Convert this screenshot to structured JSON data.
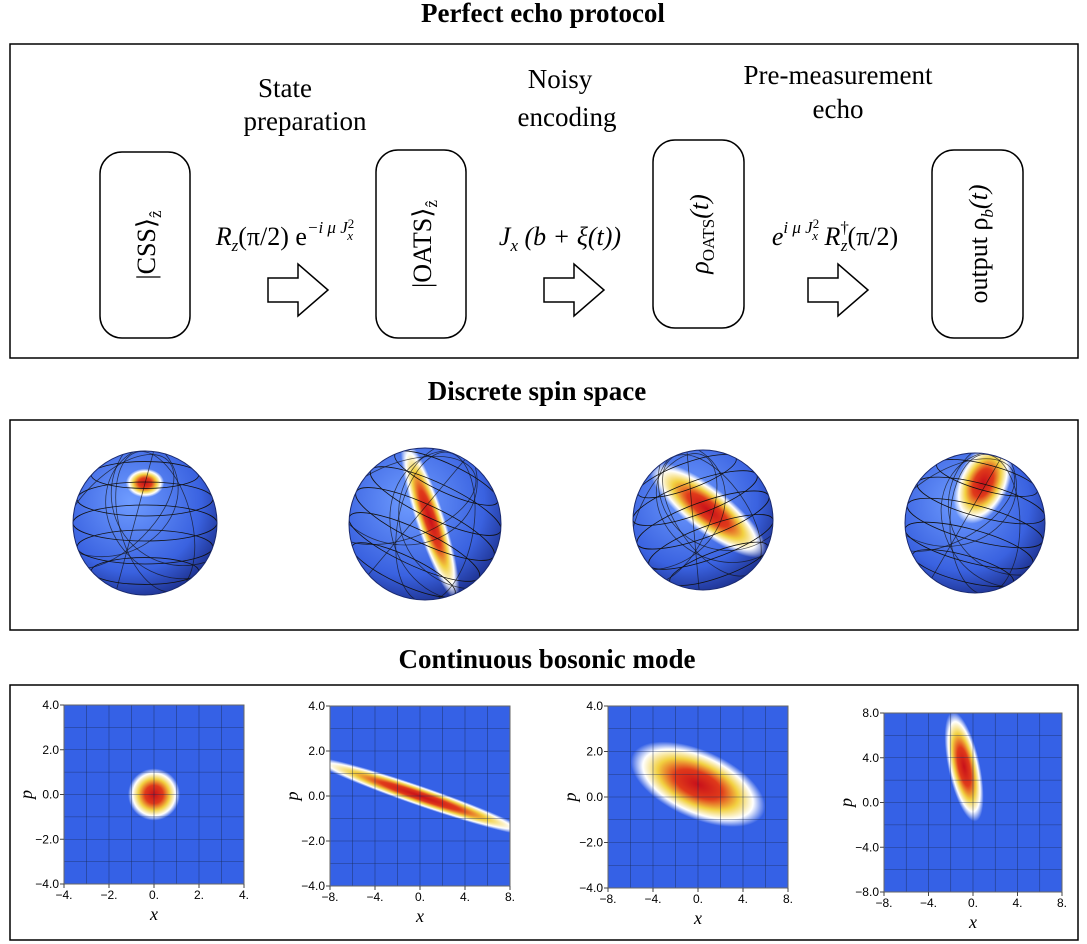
{
  "protocol": {
    "title": "Perfect echo protocol",
    "steps": [
      [
        "State",
        "preparation"
      ],
      [
        "Noisy",
        "encoding"
      ],
      [
        "Pre-measurement",
        "echo"
      ]
    ],
    "states": [
      [
        "|CSS⟩",
        "ẑ"
      ],
      [
        "|OATS⟩",
        "ẑ"
      ],
      [
        "ρ",
        "OATS",
        "(t)"
      ],
      [
        "output ρ",
        "b",
        "(t)"
      ]
    ],
    "operators": [
      [
        "R",
        "z",
        "(π/2) e",
        "−i μ J",
        "2",
        "x"
      ],
      [
        "J",
        "x",
        " (b + ξ(t))"
      ],
      [
        "e",
        "i μ J",
        "2",
        "x",
        " R",
        "†",
        "z",
        "(π/2)"
      ]
    ]
  },
  "spin": {
    "title": "Discrete spin space"
  },
  "bosonic": {
    "title": "Continuous bosonic mode",
    "x_label": "x",
    "p_label": "p",
    "plots": [
      {
        "xticks": [
          "−4.",
          "−2.",
          "0.",
          "2.",
          "4."
        ],
        "yticks": [
          "4.0",
          "2.0",
          "0.0",
          "−2.0",
          "−4.0"
        ]
      },
      {
        "xticks": [
          "−8.",
          "−4.",
          "0.",
          "4.",
          "8."
        ],
        "yticks": [
          "4.0",
          "2.0",
          "0.0",
          "−2.0",
          "−4.0"
        ]
      },
      {
        "xticks": [
          "−8.",
          "−4.",
          "0.",
          "4.",
          "8."
        ],
        "yticks": [
          "4.0",
          "2.0",
          "0.0",
          "−2.0",
          "−4.0"
        ]
      },
      {
        "xticks": [
          "−8.",
          "−4.",
          "0.",
          "4.",
          "8."
        ],
        "yticks": [
          "8.0",
          "4.0",
          "0.0",
          "−4.0",
          "−8.0"
        ]
      }
    ]
  }
}
